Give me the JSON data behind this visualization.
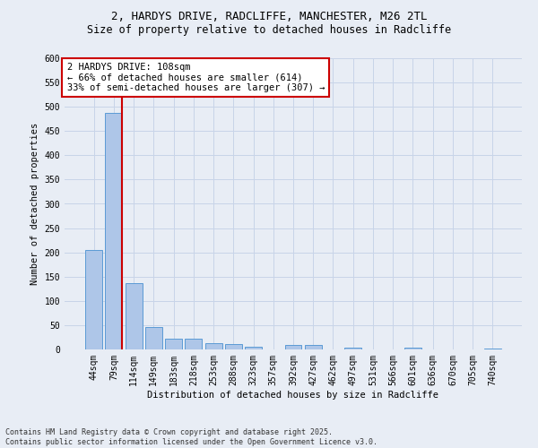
{
  "title_line1": "2, HARDYS DRIVE, RADCLIFFE, MANCHESTER, M26 2TL",
  "title_line2": "Size of property relative to detached houses in Radcliffe",
  "xlabel": "Distribution of detached houses by size in Radcliffe",
  "ylabel": "Number of detached properties",
  "categories": [
    "44sqm",
    "79sqm",
    "114sqm",
    "149sqm",
    "183sqm",
    "218sqm",
    "253sqm",
    "288sqm",
    "323sqm",
    "357sqm",
    "392sqm",
    "427sqm",
    "462sqm",
    "497sqm",
    "531sqm",
    "566sqm",
    "601sqm",
    "636sqm",
    "670sqm",
    "705sqm",
    "740sqm"
  ],
  "values": [
    205,
    487,
    137,
    46,
    22,
    22,
    13,
    12,
    5,
    0,
    9,
    9,
    0,
    4,
    0,
    0,
    3,
    0,
    0,
    0,
    2
  ],
  "bar_color": "#aec6e8",
  "bar_edge_color": "#5b9bd5",
  "grid_color": "#c8d4e8",
  "background_color": "#e8edf5",
  "vline_color": "#cc0000",
  "annotation_text": "2 HARDYS DRIVE: 108sqm\n← 66% of detached houses are smaller (614)\n33% of semi-detached houses are larger (307) →",
  "annotation_box_color": "#cc0000",
  "ylim": [
    0,
    600
  ],
  "yticks": [
    0,
    50,
    100,
    150,
    200,
    250,
    300,
    350,
    400,
    450,
    500,
    550,
    600
  ],
  "footer_text": "Contains HM Land Registry data © Crown copyright and database right 2025.\nContains public sector information licensed under the Open Government Licence v3.0.",
  "title_fontsize": 9,
  "subtitle_fontsize": 8.5,
  "axis_label_fontsize": 7.5,
  "tick_fontsize": 7,
  "annotation_fontsize": 7.5,
  "footer_fontsize": 6
}
